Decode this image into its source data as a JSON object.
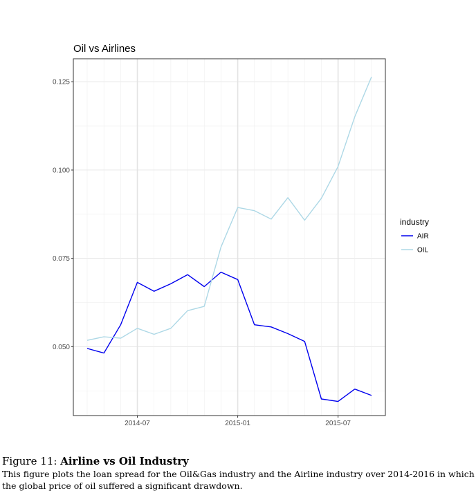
{
  "chart_data": {
    "type": "line",
    "title": "Oil vs Airlines",
    "xlabel": "",
    "ylabel": "",
    "x": [
      "2014-04",
      "2014-05",
      "2014-06",
      "2014-07",
      "2014-08",
      "2014-09",
      "2014-10",
      "2014-11",
      "2014-12",
      "2015-01",
      "2015-02",
      "2015-03",
      "2015-04",
      "2015-05",
      "2015-06",
      "2015-07",
      "2015-08",
      "2015-09"
    ],
    "x_ticks": [
      "2014-07",
      "2015-01",
      "2015-07"
    ],
    "y_ticks": [
      "0.050",
      "0.075",
      "0.100",
      "0.125"
    ],
    "ylim": [
      0.0305,
      0.1315
    ],
    "grid": true,
    "legend": {
      "title": "industry",
      "position": "right"
    },
    "series": [
      {
        "name": "AIR",
        "color": "#0000ee",
        "values": [
          0.0495,
          0.0482,
          0.0562,
          0.0682,
          0.0657,
          0.0678,
          0.0704,
          0.067,
          0.0711,
          0.069,
          0.0562,
          0.0556,
          0.0537,
          0.0515,
          0.0352,
          0.0345,
          0.038,
          0.0362
        ]
      },
      {
        "name": "OIL",
        "color": "#add8e6",
        "values": [
          0.0518,
          0.0528,
          0.0524,
          0.0552,
          0.0535,
          0.0552,
          0.0602,
          0.0614,
          0.0782,
          0.0894,
          0.0885,
          0.0861,
          0.0922,
          0.0858,
          0.092,
          0.101,
          0.1151,
          0.1264
        ]
      }
    ]
  },
  "caption": {
    "label": "Figure 11:",
    "title": "Airline vs Oil Industry",
    "text": "This figure plots the loan spread for the Oil&Gas industry and the Airline industry over 2014-2016 in which the global price of oil suffered a significant drawdown."
  }
}
